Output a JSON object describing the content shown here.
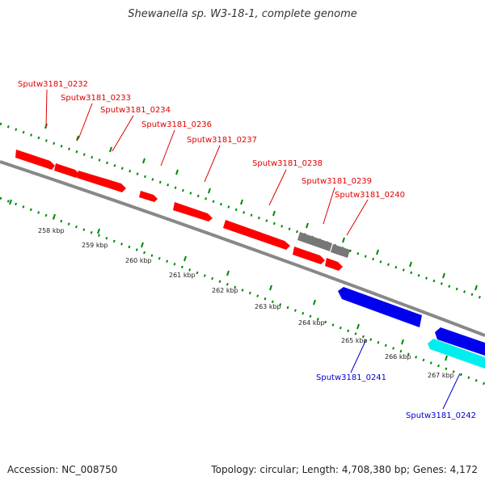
{
  "title": "Shewanella sp. W3-18-1, complete genome",
  "footer": {
    "accession": "Accession: NC_008750",
    "topology": "Topology: circular; Length: 4,708,380 bp; Genes: 4,172"
  },
  "colors": {
    "forward_gene": "#ff0000",
    "reverse_gene": "#0000ee",
    "rna_gene": "#00eeee",
    "pseudo_gene": "#777777",
    "backbone": "#888888",
    "ticks": "#008800",
    "label_forward": "#e00000",
    "label_reverse": "#0000cc"
  },
  "scale_labels": [
    "258 kbp",
    "259 kbp",
    "260 kbp",
    "261 kbp",
    "262 kbp",
    "263 kbp",
    "264 kbp",
    "265 kbp",
    "266 kbp",
    "267 kbp"
  ],
  "gene_labels": {
    "g0232": "Sputw3181_0232",
    "g0233": "Sputw3181_0233",
    "g0234": "Sputw3181_0234",
    "g0236": "Sputw3181_0236",
    "g0237": "Sputw3181_0237",
    "g0238": "Sputw3181_0238",
    "g0239": "Sputw3181_0239",
    "g0240": "Sputw3181_0240",
    "g0241": "Sputw3181_0241",
    "g0242": "Sputw3181_0242"
  }
}
